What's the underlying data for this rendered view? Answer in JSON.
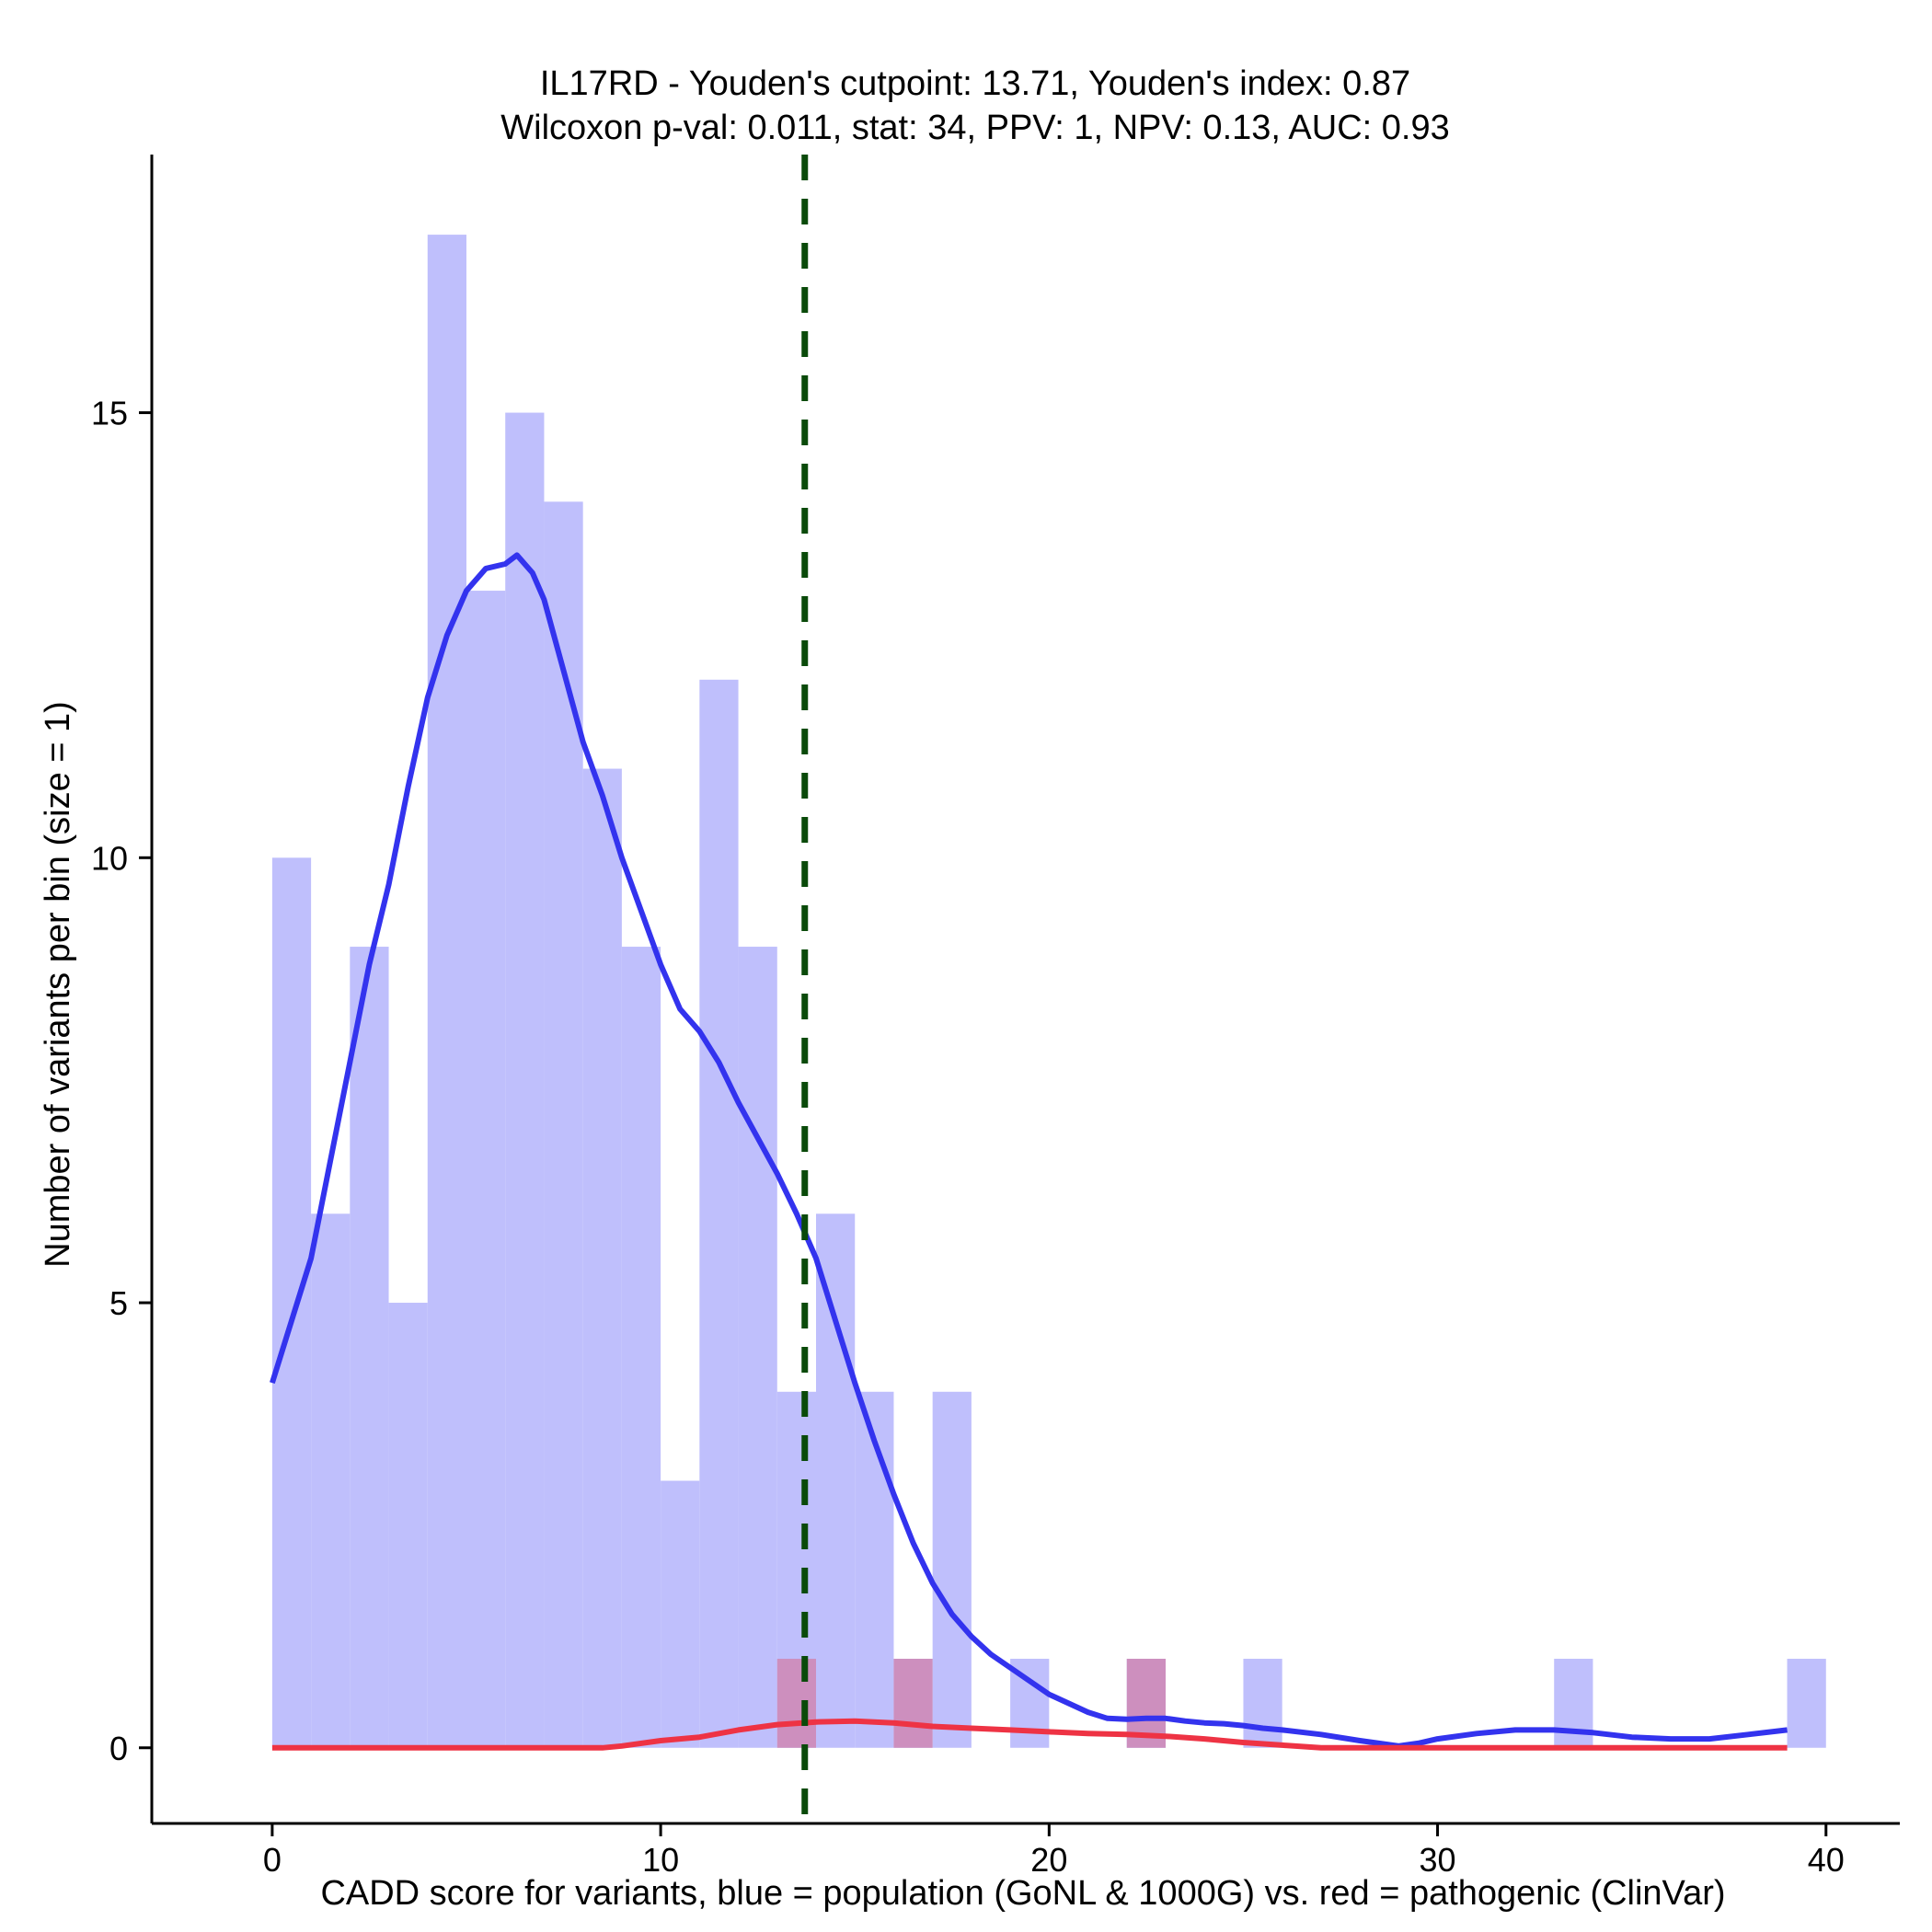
{
  "chart_data": {
    "type": "histogram",
    "title_line1": "IL17RD - Youden's cutpoint: 13.71, Youden's index: 0.87",
    "title_line2": "Wilcoxon p-val: 0.011, stat: 34, PPV: 1, NPV: 0.13, AUC: 0.93",
    "xlabel": "CADD score for variants, blue = population (GoNL & 1000G) vs. red = pathogenic (ClinVar)",
    "ylabel": "Number of variants per bin (size = 1)",
    "xlim": [
      -3.1,
      41.9
    ],
    "ylim": [
      -0.85,
      17.9
    ],
    "x_ticks": [
      0,
      10,
      20,
      30,
      40
    ],
    "x_tick_labels": [
      "0",
      "10",
      "20",
      "30",
      "40"
    ],
    "y_ticks": [
      0,
      5,
      10,
      15
    ],
    "y_tick_labels": [
      "0",
      "5",
      "10",
      "15"
    ],
    "bin_width": 1,
    "cutpoint": 13.71,
    "colors": {
      "population_bar": "#bfbffc",
      "pathogenic_bar": "#cd8fbe",
      "population_line": "#3333ee",
      "pathogenic_line": "#ee3344",
      "cutpoint_line": "#0a4a0a"
    },
    "series": [
      {
        "name": "population (GoNL & 1000G)",
        "bins": [
          {
            "x": 0,
            "count": 10
          },
          {
            "x": 1,
            "count": 6
          },
          {
            "x": 2,
            "count": 9
          },
          {
            "x": 3,
            "count": 5
          },
          {
            "x": 4,
            "count": 17
          },
          {
            "x": 5,
            "count": 13
          },
          {
            "x": 6,
            "count": 15
          },
          {
            "x": 7,
            "count": 14
          },
          {
            "x": 8,
            "count": 11
          },
          {
            "x": 9,
            "count": 9
          },
          {
            "x": 10,
            "count": 3
          },
          {
            "x": 11,
            "count": 12
          },
          {
            "x": 12,
            "count": 9
          },
          {
            "x": 13,
            "count": 4
          },
          {
            "x": 14,
            "count": 6
          },
          {
            "x": 15,
            "count": 4
          },
          {
            "x": 16,
            "count": 1
          },
          {
            "x": 17,
            "count": 4
          },
          {
            "x": 19,
            "count": 1
          },
          {
            "x": 22,
            "count": 1
          },
          {
            "x": 25,
            "count": 1
          },
          {
            "x": 33,
            "count": 1
          },
          {
            "x": 39,
            "count": 1
          }
        ],
        "density": [
          [
            0,
            4.1
          ],
          [
            0.5,
            4.8
          ],
          [
            1,
            5.5
          ],
          [
            1.5,
            6.6
          ],
          [
            2,
            7.7
          ],
          [
            2.5,
            8.8
          ],
          [
            3,
            9.7
          ],
          [
            3.5,
            10.8
          ],
          [
            4,
            11.8
          ],
          [
            4.5,
            12.5
          ],
          [
            5,
            13.0
          ],
          [
            5.5,
            13.25
          ],
          [
            6,
            13.3
          ],
          [
            6.3,
            13.4
          ],
          [
            6.7,
            13.2
          ],
          [
            7,
            12.9
          ],
          [
            7.5,
            12.1
          ],
          [
            8,
            11.3
          ],
          [
            8.5,
            10.7
          ],
          [
            9,
            10.0
          ],
          [
            9.5,
            9.4
          ],
          [
            10,
            8.8
          ],
          [
            10.5,
            8.3
          ],
          [
            11,
            8.05
          ],
          [
            11.5,
            7.7
          ],
          [
            12,
            7.25
          ],
          [
            12.5,
            6.85
          ],
          [
            13,
            6.45
          ],
          [
            13.5,
            6.0
          ],
          [
            14,
            5.5
          ],
          [
            14.5,
            4.8
          ],
          [
            15,
            4.1
          ],
          [
            15.5,
            3.45
          ],
          [
            16,
            2.85
          ],
          [
            16.5,
            2.3
          ],
          [
            17,
            1.85
          ],
          [
            17.5,
            1.5
          ],
          [
            18,
            1.25
          ],
          [
            18.5,
            1.05
          ],
          [
            19,
            0.9
          ],
          [
            19.5,
            0.75
          ],
          [
            20,
            0.6
          ],
          [
            20.5,
            0.5
          ],
          [
            21,
            0.4
          ],
          [
            21.5,
            0.33
          ],
          [
            22,
            0.32
          ],
          [
            22.5,
            0.33
          ],
          [
            23,
            0.33
          ],
          [
            23.5,
            0.3
          ],
          [
            24,
            0.28
          ],
          [
            24.5,
            0.27
          ],
          [
            25,
            0.25
          ],
          [
            25.5,
            0.22
          ],
          [
            26,
            0.2
          ],
          [
            27,
            0.15
          ],
          [
            28,
            0.08
          ],
          [
            29,
            0.02
          ],
          [
            29.5,
            0.05
          ],
          [
            30,
            0.1
          ],
          [
            31,
            0.16
          ],
          [
            32,
            0.2
          ],
          [
            33,
            0.2
          ],
          [
            34,
            0.17
          ],
          [
            35,
            0.12
          ],
          [
            36,
            0.1
          ],
          [
            37,
            0.1
          ],
          [
            38,
            0.15
          ],
          [
            39,
            0.2
          ]
        ]
      },
      {
        "name": "pathogenic (ClinVar)",
        "bins": [
          {
            "x": 13,
            "count": 1
          },
          {
            "x": 16,
            "count": 1
          },
          {
            "x": 22,
            "count": 1
          }
        ],
        "density": [
          [
            0,
            0
          ],
          [
            8.5,
            0
          ],
          [
            9,
            0.02
          ],
          [
            10,
            0.08
          ],
          [
            11,
            0.12
          ],
          [
            12,
            0.2
          ],
          [
            13,
            0.26
          ],
          [
            14,
            0.29
          ],
          [
            15,
            0.3
          ],
          [
            16,
            0.28
          ],
          [
            17,
            0.24
          ],
          [
            18,
            0.22
          ],
          [
            19,
            0.2
          ],
          [
            20,
            0.18
          ],
          [
            21,
            0.16
          ],
          [
            22,
            0.15
          ],
          [
            23,
            0.13
          ],
          [
            24,
            0.1
          ],
          [
            25,
            0.06
          ],
          [
            26,
            0.03
          ],
          [
            27,
            0.0
          ],
          [
            28,
            0
          ],
          [
            30,
            0
          ],
          [
            35,
            0
          ],
          [
            39,
            0
          ]
        ]
      }
    ]
  }
}
